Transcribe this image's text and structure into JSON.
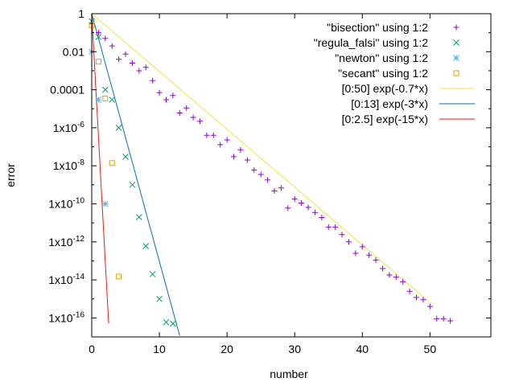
{
  "chart_data": {
    "type": "scatter",
    "title": "",
    "xlabel": "number",
    "ylabel": "error",
    "xlim": [
      0,
      59
    ],
    "ylim": [
      1e-17,
      1
    ],
    "yscale": "log",
    "grid": false,
    "legend_position": "top-right",
    "x_ticks": [
      0,
      10,
      20,
      30,
      40,
      50
    ],
    "y_ticks": [
      {
        "value": 1,
        "label": "1"
      },
      {
        "value": 0.01,
        "label": "0.01"
      },
      {
        "value": 0.0001,
        "label": "0.0001"
      },
      {
        "value": 1e-06,
        "base": "1x10",
        "exp": "-6"
      },
      {
        "value": 1e-08,
        "base": "1x10",
        "exp": "-8"
      },
      {
        "value": 1e-10,
        "base": "1x10",
        "exp": "-10"
      },
      {
        "value": 1e-12,
        "base": "1x10",
        "exp": "-12"
      },
      {
        "value": 1e-14,
        "base": "1x10",
        "exp": "-14"
      },
      {
        "value": 1e-16,
        "base": "1x10",
        "exp": "-16"
      }
    ],
    "point_series": [
      {
        "name": "\"bisection\" using 1:2",
        "marker": "plus",
        "color": "#9400d3",
        "points": [
          [
            0,
            0.3
          ],
          [
            1,
            0.1
          ],
          [
            2,
            0.05
          ],
          [
            3,
            0.02
          ],
          [
            4,
            0.004
          ],
          [
            5,
            0.0075
          ],
          [
            6,
            0.0025
          ],
          [
            7,
            0.001
          ],
          [
            8,
            0.0015
          ],
          [
            9,
            0.0003
          ],
          [
            10,
            7e-05
          ],
          [
            11,
            3e-05
          ],
          [
            12,
            5e-05
          ],
          [
            13,
            6e-06
          ],
          [
            14,
            1.1e-05
          ],
          [
            15,
            3.5e-06
          ],
          [
            16,
            2.2e-06
          ],
          [
            17,
            4e-07
          ],
          [
            18,
            4e-07
          ],
          [
            19,
            1.3e-07
          ],
          [
            20,
            2.3e-07
          ],
          [
            21,
            3e-08
          ],
          [
            22,
            7e-08
          ],
          [
            23,
            2e-08
          ],
          [
            24,
            6e-09
          ],
          [
            25,
            3.5e-09
          ],
          [
            26,
            1.8e-09
          ],
          [
            27,
            4.8e-10
          ],
          [
            28,
            6.8e-10
          ],
          [
            29,
            6e-11
          ],
          [
            30,
            1.8e-10
          ],
          [
            31,
            1.1e-10
          ],
          [
            32,
            6.5e-11
          ],
          [
            33,
            3.5e-11
          ],
          [
            34,
            1.9e-11
          ],
          [
            35,
            6e-12
          ],
          [
            36,
            6e-12
          ],
          [
            37,
            2.4e-12
          ],
          [
            38,
            1e-12
          ],
          [
            39,
            2.5e-13
          ],
          [
            40,
            5.5e-13
          ],
          [
            41,
            2e-13
          ],
          [
            42,
            1.1e-13
          ],
          [
            43,
            4e-14
          ],
          [
            44,
            1.8e-14
          ],
          [
            45,
            1.4e-14
          ],
          [
            46,
            8e-15
          ],
          [
            47,
            2.5e-15
          ],
          [
            48,
            1.2e-15
          ],
          [
            49,
            9e-16
          ],
          [
            50,
            4e-16
          ],
          [
            51,
            9e-17
          ],
          [
            52,
            9e-17
          ],
          [
            53,
            7e-17
          ]
        ]
      },
      {
        "name": "\"regula_falsi\" using 1:2",
        "marker": "x",
        "color": "#009e73",
        "points": [
          [
            0,
            0.4
          ],
          [
            1,
            0.06
          ],
          [
            2,
            0.0001
          ],
          [
            3,
            3e-05
          ],
          [
            4,
            1e-06
          ],
          [
            5,
            3e-08
          ],
          [
            6,
            1e-09
          ],
          [
            7,
            2e-11
          ],
          [
            8,
            6e-13
          ],
          [
            9,
            2e-14
          ],
          [
            10,
            1e-15
          ],
          [
            11,
            6e-17
          ],
          [
            12,
            5e-17
          ]
        ]
      },
      {
        "name": "\"newton\" using 1:2",
        "marker": "star",
        "color": "#56b4e9",
        "points": [
          [
            0,
            0.01
          ],
          [
            1,
            3e-05
          ],
          [
            2,
            1e-10
          ]
        ]
      },
      {
        "name": "\"secant\" using 1:2",
        "marker": "square",
        "color": "#e69f00",
        "points": [
          [
            0,
            0.25
          ],
          [
            1,
            0.003
          ],
          [
            2,
            3.5e-05
          ],
          [
            3,
            1.4e-08
          ],
          [
            4,
            1.5e-14
          ]
        ]
      }
    ],
    "line_series": [
      {
        "name": "[0:50] exp(-0.7*x)",
        "color": "#f0e442",
        "coef": -0.7,
        "x_range": [
          0,
          50
        ]
      },
      {
        "name": "[0:13] exp(-3*x)",
        "color": "#0072b2",
        "coef": -3,
        "x_range": [
          0,
          13
        ]
      },
      {
        "name": "[0:2.5] exp(-15*x)",
        "color": "#e51e10",
        "coef": -15,
        "x_range": [
          0,
          2.5
        ]
      }
    ]
  }
}
